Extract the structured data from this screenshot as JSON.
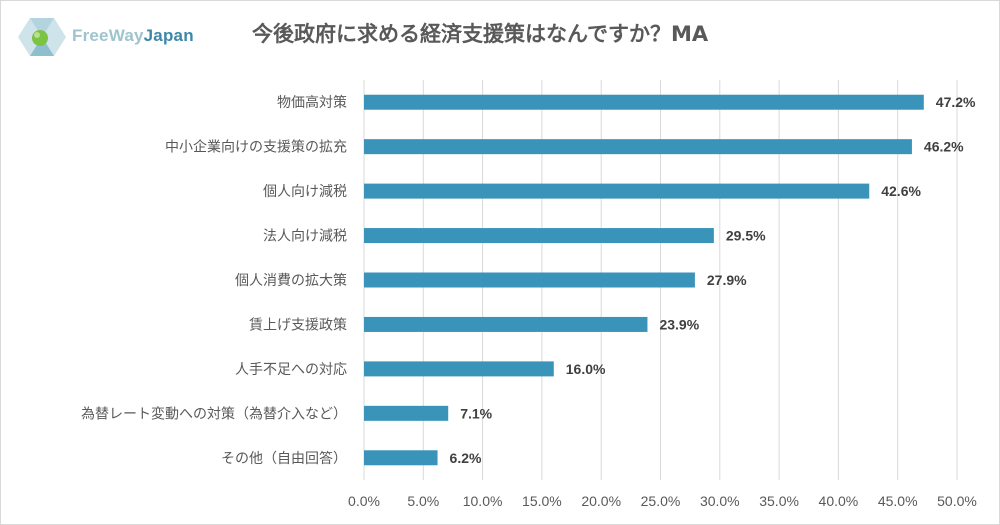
{
  "brand": {
    "part1": "FreeWay",
    "part2": "Japan",
    "color_light": "#9ec4cf",
    "color_dark": "#3d87a8"
  },
  "chart_data": {
    "type": "bar",
    "orientation": "horizontal",
    "title": "今後政府に求める経済支援策はなんですか？MA",
    "categories": [
      "物価高対策",
      "中小企業向けの支援策の拡充",
      "個人向け減税",
      "法人向け減税",
      "個人消費の拡大策",
      "賃上げ支援政策",
      "人手不足への対応",
      "為替レート変動への対策（為替介入など）",
      "その他（自由回答）"
    ],
    "values": [
      47.2,
      46.2,
      42.6,
      29.5,
      27.9,
      23.9,
      16.0,
      7.1,
      6.2
    ],
    "value_labels": [
      "47.2%",
      "46.2%",
      "42.6%",
      "29.5%",
      "27.9%",
      "23.9%",
      "16.0%",
      "7.1%",
      "6.2%"
    ],
    "xlim": [
      0,
      50
    ],
    "xticks": [
      "0.0%",
      "5.0%",
      "10.0%",
      "15.0%",
      "20.0%",
      "25.0%",
      "30.0%",
      "35.0%",
      "40.0%",
      "45.0%",
      "50.0%"
    ],
    "grid": true,
    "bar_color": "#3a93b8"
  }
}
